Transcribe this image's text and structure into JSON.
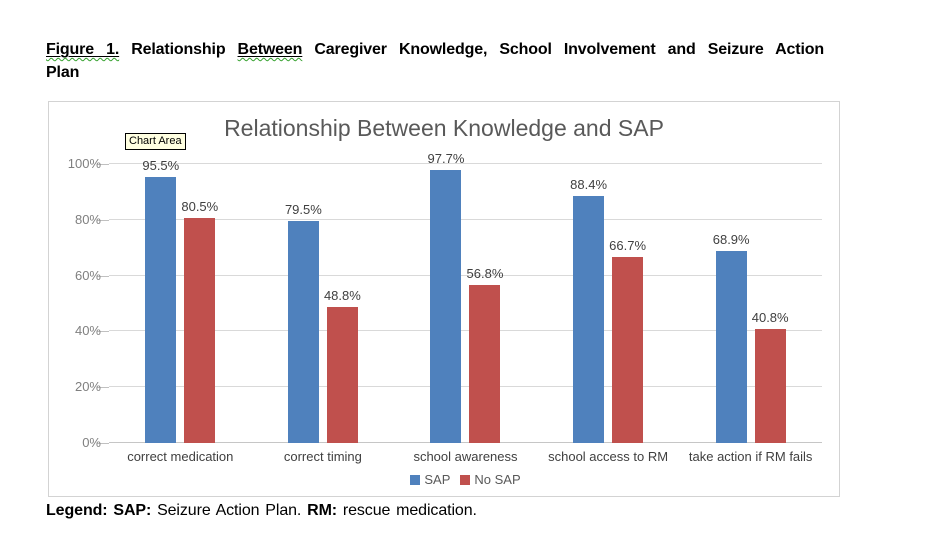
{
  "figure_caption": {
    "seg_figure": "Figure 1.",
    "seg_mid": " Relationship ",
    "seg_between": "Between",
    "seg_rest": " Caregiver Knowledge, School Involvement and Seizure Action",
    "line2": "Plan"
  },
  "chart": {
    "tooltip_label": "Chart Area",
    "title": "Relationship Between Knowledge and SAP"
  },
  "chart_data": {
    "type": "bar",
    "title": "Relationship Between Knowledge and SAP",
    "categories": [
      "correct medication",
      "correct timing",
      "school awareness",
      "school access to RM",
      "take action if RM fails"
    ],
    "series": [
      {
        "name": "SAP",
        "color": "#4F81BD",
        "values": [
          95.5,
          79.5,
          97.7,
          88.4,
          68.9
        ]
      },
      {
        "name": "No SAP",
        "color": "#C0504D",
        "values": [
          80.5,
          48.8,
          56.8,
          66.7,
          40.8
        ]
      }
    ],
    "y_ticks": [
      "0%",
      "20%",
      "40%",
      "60%",
      "80%",
      "100%"
    ],
    "ylim": [
      0,
      100
    ],
    "grid": true,
    "data_labels": true,
    "legend_position": "bottom",
    "colors": {
      "grid": "#d9d9d9",
      "axis_text": "#7f7f7f",
      "label_text": "#404040",
      "title_text": "#595959"
    }
  },
  "legend_note": {
    "seg1": "Legend:",
    "seg2": " SAP:",
    "seg3": " Seizure Action Plan. ",
    "seg4": "RM:",
    "seg5": " rescue medication."
  }
}
